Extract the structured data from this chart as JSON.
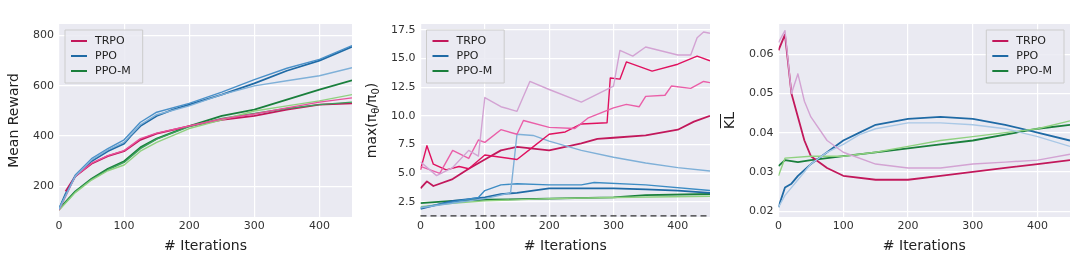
{
  "chart_data": [
    {
      "type": "line",
      "xlabel": "# Iterations",
      "ylabel": "Mean Reward",
      "xlim": [
        0,
        450
      ],
      "xticks": [
        0,
        100,
        200,
        300,
        400
      ],
      "ylim": [
        78,
        846
      ],
      "yticks": [
        200,
        400,
        600,
        800
      ],
      "grid": true,
      "legend": "top left",
      "marker": "none",
      "line_style": "solid",
      "series": [
        {
          "color": "#7fb0d8",
          "x": [
            0,
            25,
            50,
            75,
            100,
            125,
            150,
            200,
            250,
            300,
            350,
            400,
            450
          ],
          "values": [
            108,
            240,
            305,
            345,
            375,
            445,
            485,
            520,
            565,
            600,
            620,
            640,
            672
          ]
        },
        {
          "color": "#4a90c8",
          "x": [
            0,
            25,
            50,
            75,
            100,
            125,
            150,
            200,
            250,
            300,
            350,
            400,
            450
          ],
          "values": [
            110,
            245,
            310,
            350,
            385,
            455,
            495,
            530,
            575,
            625,
            670,
            705,
            760
          ]
        },
        {
          "color": "#e8509a",
          "x": [
            0,
            25,
            50,
            75,
            100,
            125,
            150,
            200,
            250,
            300,
            350,
            400,
            450
          ],
          "values": [
            105,
            240,
            292,
            322,
            342,
            390,
            412,
            440,
            468,
            488,
            512,
            535,
            552
          ]
        },
        {
          "color": "#8fd17f",
          "x": [
            0,
            25,
            50,
            75,
            100,
            125,
            150,
            200,
            250,
            300,
            350,
            400,
            450
          ],
          "values": [
            105,
            175,
            225,
            262,
            285,
            340,
            375,
            430,
            465,
            500,
            520,
            540,
            565
          ]
        },
        {
          "color": "#3aa05a",
          "x": [
            0,
            25,
            50,
            75,
            100,
            125,
            150,
            200,
            250,
            300,
            350,
            400,
            450
          ],
          "values": [
            108,
            178,
            228,
            266,
            295,
            350,
            388,
            438,
            470,
            490,
            510,
            525,
            535
          ]
        },
        {
          "name": "TRPO",
          "color": "#c2185b",
          "x": [
            10,
            25,
            50,
            75,
            100,
            125,
            150,
            200,
            250,
            300,
            350,
            400,
            450
          ],
          "values": [
            180,
            240,
            290,
            320,
            340,
            385,
            410,
            440,
            465,
            480,
            505,
            525,
            530
          ]
        },
        {
          "name": "PPO",
          "color": "#1f6aa5",
          "x": [
            0,
            10,
            25,
            50,
            75,
            100,
            110,
            125,
            150,
            175,
            200,
            250,
            300,
            350,
            400,
            450
          ],
          "values": [
            110,
            170,
            240,
            300,
            340,
            370,
            400,
            440,
            480,
            505,
            525,
            565,
            610,
            660,
            700,
            755
          ]
        },
        {
          "name": "PPO-M",
          "color": "#1a7f3c",
          "x": [
            0,
            25,
            50,
            75,
            100,
            125,
            150,
            200,
            250,
            300,
            350,
            400,
            450
          ],
          "values": [
            110,
            180,
            230,
            270,
            300,
            355,
            390,
            440,
            480,
            505,
            545,
            585,
            622
          ]
        }
      ]
    },
    {
      "type": "line",
      "xlabel": "# Iterations",
      "ylabel": "max(π$_{θ}$/π$_{0}$)",
      "xlim": [
        0,
        450
      ],
      "xticks": [
        0,
        100,
        200,
        300,
        400
      ],
      "ylim": [
        1.2,
        18
      ],
      "yticks": [
        2.5,
        {
          "value": 5,
          "label": "5.0"
        },
        7.5,
        {
          "value": 10,
          "label": "10.0"
        },
        12.5,
        {
          "value": 15,
          "label": "15.0"
        },
        17.5
      ],
      "grid": true,
      "legend": "top left",
      "marker": "none",
      "line_style": "solid",
      "ref_lines": [
        {
          "axis": "y",
          "value": 1.3,
          "color": "#333333",
          "line_style": "dashed"
        }
      ],
      "series": [
        {
          "color": "#d3a3d3",
          "x": [
            0,
            25,
            50,
            75,
            90,
            100,
            125,
            150,
            170,
            200,
            250,
            300,
            310,
            330,
            350,
            400,
            420,
            430,
            440,
            450
          ],
          "values": [
            6.0,
            4.8,
            5.5,
            7.0,
            6.5,
            11.6,
            10.8,
            10.4,
            13.0,
            12.3,
            11.2,
            12.6,
            15.7,
            15.2,
            16.0,
            15.3,
            15.3,
            16.8,
            17.3,
            17.2
          ]
        },
        {
          "color": "#ea5fa8",
          "x": [
            0,
            30,
            50,
            75,
            90,
            100,
            125,
            150,
            160,
            200,
            240,
            260,
            300,
            320,
            340,
            350,
            380,
            390,
            420,
            440,
            450
          ],
          "values": [
            5.6,
            5.0,
            7.0,
            6.3,
            7.9,
            7.7,
            8.8,
            8.4,
            9.6,
            9.0,
            8.9,
            9.8,
            10.7,
            11.0,
            10.8,
            11.7,
            11.8,
            12.6,
            12.4,
            13.0,
            12.9
          ]
        },
        {
          "color": "#e0115f",
          "x": [
            0,
            10,
            20,
            40,
            60,
            75,
            100,
            150,
            175,
            200,
            225,
            250,
            290,
            295,
            310,
            320,
            360,
            400,
            430,
            450
          ],
          "values": [
            5.3,
            7.4,
            5.8,
            5.3,
            5.6,
            5.4,
            6.6,
            6.2,
            7.3,
            8.4,
            8.6,
            9.3,
            9.4,
            13.3,
            13.2,
            14.7,
            13.9,
            14.5,
            15.2,
            14.8
          ]
        },
        {
          "color": "#7fb0d8",
          "x": [
            0,
            100,
            140,
            150,
            175,
            200,
            250,
            300,
            350,
            400,
            450
          ],
          "values": [
            2.0,
            2.8,
            3.3,
            8.4,
            8.3,
            7.8,
            7.0,
            6.4,
            5.9,
            5.5,
            5.2
          ]
        },
        {
          "color": "#3d8cc4",
          "x": [
            0,
            90,
            100,
            125,
            150,
            200,
            250,
            270,
            350,
            450
          ],
          "values": [
            2.0,
            2.9,
            3.5,
            4.0,
            4.1,
            4.0,
            4.0,
            4.2,
            4.0,
            3.5
          ]
        },
        {
          "color": "#8fd17f",
          "x": [
            0,
            50,
            100,
            200,
            300,
            450
          ],
          "values": [
            2.1,
            2.4,
            2.6,
            2.8,
            2.9,
            3.0
          ]
        },
        {
          "name": "TRPO",
          "color": "#c2185b",
          "x": [
            0,
            10,
            20,
            50,
            75,
            100,
            125,
            150,
            200,
            250,
            275,
            300,
            350,
            400,
            425,
            450
          ],
          "values": [
            3.7,
            4.3,
            3.9,
            4.5,
            5.4,
            6.2,
            7.0,
            7.3,
            7.0,
            7.6,
            8.0,
            8.1,
            8.3,
            8.8,
            9.5,
            10.0
          ]
        },
        {
          "name": "PPO",
          "color": "#1f6aa5",
          "x": [
            0,
            50,
            100,
            125,
            150,
            175,
            200,
            250,
            300,
            350,
            400,
            450
          ],
          "values": [
            1.9,
            2.6,
            2.9,
            3.2,
            3.3,
            3.5,
            3.7,
            3.7,
            3.7,
            3.6,
            3.5,
            3.3
          ]
        },
        {
          "name": "PPO-M",
          "color": "#1a7f3c",
          "x": [
            0,
            50,
            100,
            200,
            300,
            350,
            450
          ],
          "values": [
            2.4,
            2.6,
            2.7,
            2.8,
            2.9,
            3.1,
            3.2
          ]
        }
      ]
    },
    {
      "type": "line",
      "xlabel": "# Iterations",
      "ylabel": "K̅L̅",
      "xlim": [
        0,
        450
      ],
      "xticks": [
        0,
        100,
        200,
        300,
        400
      ],
      "ylim": [
        0.0185,
        0.0677
      ],
      "yticks": [
        0.02,
        0.03,
        0.04,
        0.05,
        0.06
      ],
      "grid": true,
      "legend": "top right",
      "marker": "none",
      "line_style": "solid",
      "series": [
        {
          "color": "#d3a3d3",
          "x": [
            0,
            10,
            20,
            30,
            40,
            50,
            75,
            100,
            150,
            200,
            250,
            300,
            350,
            400,
            450
          ],
          "values": [
            0.063,
            0.066,
            0.05,
            0.055,
            0.048,
            0.044,
            0.038,
            0.035,
            0.032,
            0.031,
            0.031,
            0.032,
            0.0325,
            0.033,
            0.0345
          ]
        },
        {
          "color": "#a9c8e6",
          "x": [
            0,
            10,
            20,
            30,
            50,
            75,
            100,
            125,
            150,
            200,
            250,
            300,
            350,
            400,
            450
          ],
          "values": [
            0.021,
            0.024,
            0.026,
            0.028,
            0.032,
            0.035,
            0.037,
            0.0395,
            0.041,
            0.0425,
            0.0425,
            0.042,
            0.041,
            0.039,
            0.0365
          ]
        },
        {
          "color": "#8fd17f",
          "x": [
            0,
            10,
            50,
            100,
            150,
            200,
            250,
            300,
            350,
            400,
            450
          ],
          "values": [
            0.029,
            0.0335,
            0.034,
            0.034,
            0.035,
            0.0365,
            0.038,
            0.039,
            0.04,
            0.041,
            0.043
          ]
        },
        {
          "name": "TRPO",
          "color": "#c2185b",
          "x": [
            0,
            10,
            20,
            30,
            40,
            50,
            75,
            100,
            150,
            200,
            250,
            300,
            350,
            400,
            450
          ],
          "values": [
            0.061,
            0.065,
            0.05,
            0.044,
            0.038,
            0.034,
            0.031,
            0.029,
            0.028,
            0.028,
            0.029,
            0.03,
            0.031,
            0.032,
            0.033
          ]
        },
        {
          "name": "PPO",
          "color": "#1f6aa5",
          "x": [
            0,
            10,
            20,
            30,
            50,
            75,
            100,
            125,
            150,
            200,
            250,
            300,
            350,
            400,
            450
          ],
          "values": [
            0.021,
            0.026,
            0.027,
            0.029,
            0.032,
            0.035,
            0.038,
            0.04,
            0.042,
            0.0435,
            0.044,
            0.0435,
            0.042,
            0.04,
            0.038
          ]
        },
        {
          "name": "PPO-M",
          "color": "#1a7f3c",
          "x": [
            0,
            10,
            30,
            50,
            100,
            150,
            200,
            250,
            300,
            350,
            400,
            450
          ],
          "values": [
            0.0315,
            0.033,
            0.0325,
            0.033,
            0.034,
            0.035,
            0.036,
            0.037,
            0.038,
            0.0395,
            0.041,
            0.042
          ]
        }
      ]
    }
  ]
}
